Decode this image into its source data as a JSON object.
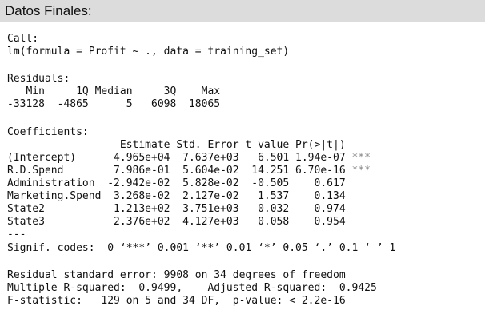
{
  "window": {
    "title": "Datos Finales:"
  },
  "console": {
    "call_label": "Call:",
    "call_text": "lm(formula = Profit ~ ., data = training_set)",
    "residuals_label": "Residuals:",
    "residuals_header": "   Min     1Q Median     3Q    Max",
    "residuals_values": "-33128  -4865      5   6098  18065",
    "coefficients_label": "Coefficients:",
    "coef_header": "                  Estimate Std. Error t value Pr(>|t|)",
    "coef_rows": [
      {
        "text": "(Intercept)      4.965e+04  7.637e+03   6.501 1.94e-07",
        "stars": " ***"
      },
      {
        "text": "R.D.Spend        7.986e-01  5.604e-02  14.251 6.70e-16",
        "stars": " ***"
      },
      {
        "text": "Administration  -2.942e-02  5.828e-02  -0.505    0.617",
        "stars": ""
      },
      {
        "text": "Marketing.Spend  3.268e-02  2.127e-02   1.537    0.134",
        "stars": ""
      },
      {
        "text": "State2           1.213e+02  3.751e+03   0.032    0.974",
        "stars": ""
      },
      {
        "text": "State3           2.376e+02  4.127e+03   0.058    0.954",
        "stars": ""
      }
    ],
    "separator": "---",
    "signif_codes": "Signif. codes:  0 ‘***’ 0.001 ‘**’ 0.01 ‘*’ 0.05 ‘.’ 0.1 ‘ ’ 1",
    "residual_se": "Residual standard error: 9908 on 34 degrees of freedom",
    "r_squared": "Multiple R-squared:  0.9499,    Adjusted R-squared:  0.9425",
    "f_statistic": "F-statistic:   129 on 5 and 34 DF,  p-value: < 2.2e-16"
  },
  "colors": {
    "title_bar": "#dcdcdc",
    "background": "#ffffff",
    "text": "#111111",
    "signif_stars": "#888888"
  }
}
